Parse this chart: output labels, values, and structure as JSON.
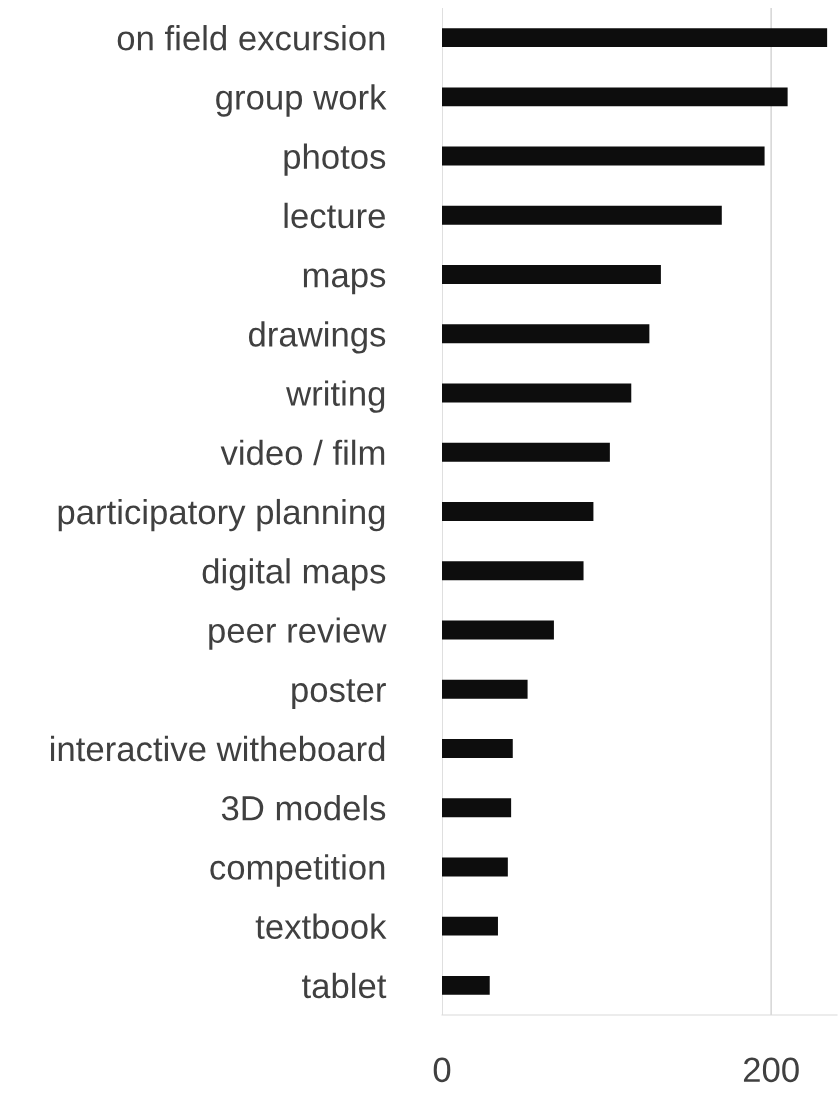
{
  "chart_data": {
    "type": "bar",
    "orientation": "horizontal",
    "categories": [
      "on field excursion",
      "group work",
      "photos",
      "lecture",
      "maps",
      "drawings",
      "writing",
      "video / film",
      "participatory planning",
      "digital maps",
      "peer review",
      "poster",
      "interactive witheboard",
      "3D models",
      "competition",
      "textbook",
      "tablet"
    ],
    "values": [
      234,
      210,
      196,
      170,
      133,
      126,
      115,
      102,
      92,
      86,
      68,
      52,
      43,
      42,
      40,
      34,
      29
    ],
    "color": "#0d0d0d",
    "xlim": [
      0,
      240
    ],
    "xticks": [
      0,
      200
    ],
    "grid": "x"
  }
}
